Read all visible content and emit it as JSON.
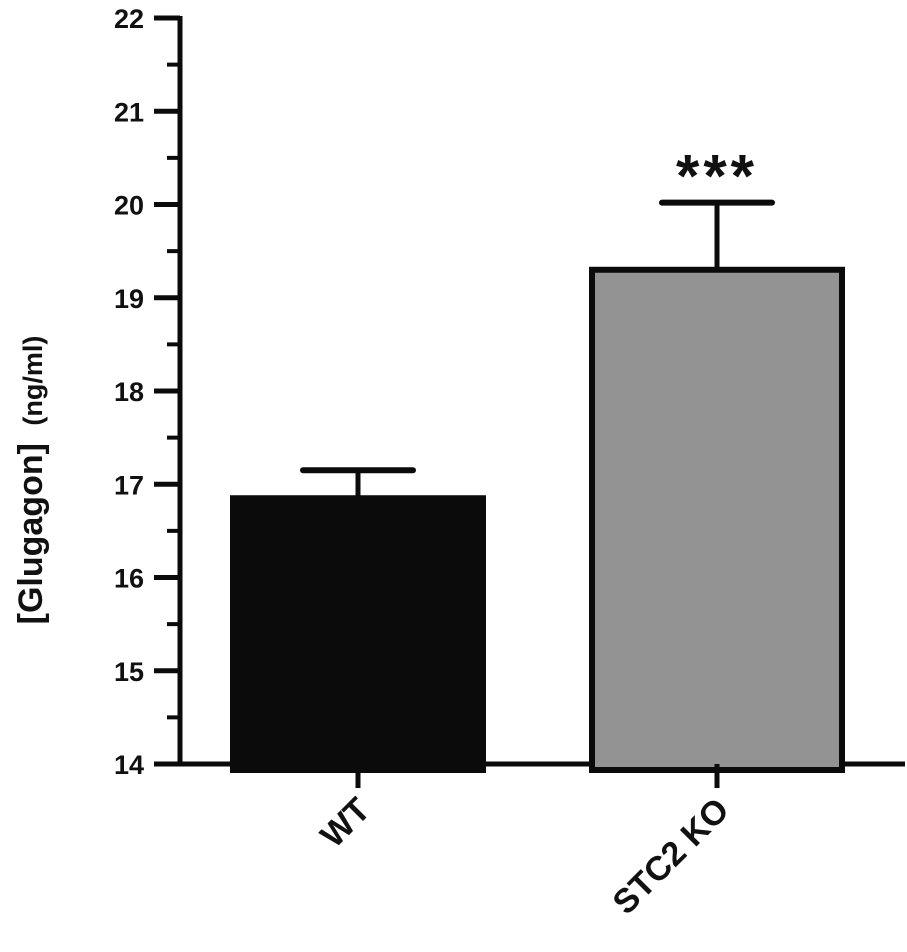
{
  "chart_data": {
    "type": "bar",
    "categories": [
      "WT",
      "STC2 KO"
    ],
    "series": [
      {
        "values": [
          16.85,
          19.3
        ],
        "error": [
          0.3,
          0.72
        ],
        "colors": [
          "#0b0b0b",
          "#939393"
        ]
      }
    ],
    "ylabel": "[Glugagon]",
    "ylabel_unit": "(ng/ml)",
    "ylim": [
      14,
      22
    ],
    "yticks": [
      "14",
      "15",
      "16",
      "17",
      "18",
      "19",
      "20",
      "21",
      "22"
    ],
    "annotations": [
      {
        "category": "STC2 KO",
        "text": "***"
      }
    ],
    "grid": false,
    "axis_color": "#0b0b0b"
  }
}
